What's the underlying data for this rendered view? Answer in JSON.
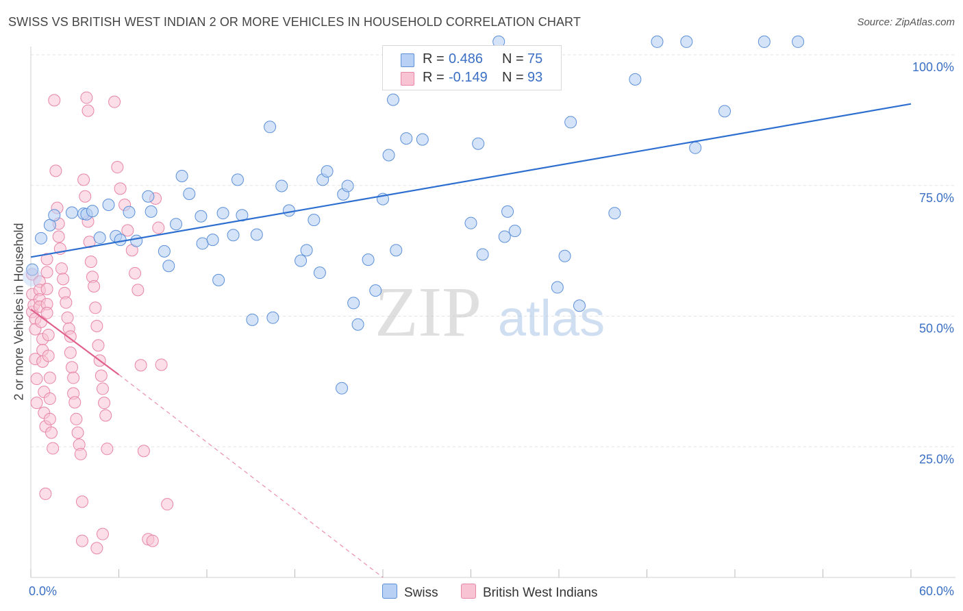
{
  "title": "SWISS VS BRITISH WEST INDIAN 2 OR MORE VEHICLES IN HOUSEHOLD CORRELATION CHART",
  "source": "Source: ZipAtlas.com",
  "colors": {
    "swiss_fill": "#b8d0f3",
    "swiss_stroke": "#5b8fd8",
    "swiss_line": "#2d6fd0",
    "bwi_fill": "#f8c3d3",
    "bwi_stroke": "#e884a6",
    "bwi_line": "#e0608c",
    "axis_text": "#3a6fc4",
    "grid": "#e2e2e2"
  },
  "legend": {
    "swiss": {
      "r_label": "R =",
      "r_value": "0.486",
      "n_label": "N =",
      "n_value": "75"
    },
    "bwi": {
      "r_label": "R =",
      "r_value": "-0.149",
      "n_label": "N =",
      "n_value": "93"
    }
  },
  "bottom_legend": {
    "swiss": "Swiss",
    "bwi": "British West Indians"
  },
  "watermark": {
    "zip": "ZIP",
    "atlas": "atlas"
  },
  "chart_data": {
    "type": "scatter",
    "title": "SWISS VS BRITISH WEST INDIAN 2 OR MORE VEHICLES IN HOUSEHOLD CORRELATION CHART",
    "xlabel": "",
    "ylabel": "2 or more Vehicles in Household",
    "xlim": [
      0,
      60
    ],
    "ylim": [
      0,
      100
    ],
    "x_tick_labels": [
      "0.0%",
      "60.0%"
    ],
    "y_tick_values": [
      25,
      50,
      75,
      100
    ],
    "y_tick_labels": [
      "25.0%",
      "50.0%",
      "75.0%",
      "100.0%"
    ],
    "x_minor_ticks": [
      0,
      6,
      12,
      18,
      24,
      30,
      36,
      42,
      48,
      54,
      60
    ],
    "grid": true,
    "series": [
      {
        "name": "Swiss",
        "trend": {
          "x": [
            0,
            60
          ],
          "y": [
            61.3,
            90.6
          ],
          "dashed_to": null
        },
        "points": [
          [
            0.1,
            58.9
          ],
          [
            0.7,
            64.9
          ],
          [
            1.3,
            67.4
          ],
          [
            1.6,
            69.3
          ],
          [
            2.8,
            69.8
          ],
          [
            3.6,
            69.6
          ],
          [
            3.8,
            69.5
          ],
          [
            4.2,
            70.1
          ],
          [
            4.7,
            65.0
          ],
          [
            5.3,
            71.3
          ],
          [
            5.8,
            65.3
          ],
          [
            6.1,
            64.6
          ],
          [
            6.7,
            69.9
          ],
          [
            7.2,
            64.4
          ],
          [
            8.0,
            72.9
          ],
          [
            8.2,
            70.0
          ],
          [
            9.1,
            62.4
          ],
          [
            9.4,
            59.6
          ],
          [
            9.9,
            67.6
          ],
          [
            10.3,
            76.8
          ],
          [
            10.8,
            73.4
          ],
          [
            11.6,
            69.1
          ],
          [
            11.7,
            63.9
          ],
          [
            12.4,
            64.6
          ],
          [
            12.8,
            56.9
          ],
          [
            13.1,
            69.7
          ],
          [
            13.8,
            65.5
          ],
          [
            14.1,
            76.1
          ],
          [
            14.4,
            69.3
          ],
          [
            15.1,
            49.3
          ],
          [
            15.4,
            65.6
          ],
          [
            16.3,
            86.2
          ],
          [
            16.5,
            49.7
          ],
          [
            17.1,
            74.9
          ],
          [
            17.6,
            70.2
          ],
          [
            18.4,
            60.6
          ],
          [
            18.8,
            62.6
          ],
          [
            19.3,
            68.4
          ],
          [
            19.7,
            58.3
          ],
          [
            19.9,
            76.1
          ],
          [
            20.2,
            77.7
          ],
          [
            21.2,
            36.2
          ],
          [
            21.3,
            73.3
          ],
          [
            21.6,
            74.9
          ],
          [
            22.0,
            52.5
          ],
          [
            22.3,
            48.4
          ],
          [
            23.0,
            60.8
          ],
          [
            23.5,
            54.9
          ],
          [
            24.0,
            72.4
          ],
          [
            24.4,
            80.8
          ],
          [
            24.7,
            91.4
          ],
          [
            24.9,
            62.6
          ],
          [
            25.6,
            84.0
          ],
          [
            26.7,
            83.8
          ],
          [
            30.0,
            67.8
          ],
          [
            30.5,
            83.0
          ],
          [
            30.8,
            61.8
          ],
          [
            31.9,
            102.5
          ],
          [
            32.3,
            65.2
          ],
          [
            32.6,
            94.4
          ],
          [
            33.0,
            66.3
          ],
          [
            34.0,
            99.3
          ],
          [
            35.9,
            55.5
          ],
          [
            36.4,
            61.5
          ],
          [
            36.8,
            87.1
          ],
          [
            37.4,
            52.0
          ],
          [
            39.8,
            69.7
          ],
          [
            41.2,
            95.3
          ],
          [
            42.7,
            102.5
          ],
          [
            44.7,
            102.5
          ],
          [
            45.3,
            82.2
          ],
          [
            47.3,
            89.2
          ],
          [
            50.0,
            102.5
          ],
          [
            52.3,
            102.5
          ],
          [
            32.5,
            70.0
          ]
        ]
      },
      {
        "name": "British West Indians",
        "trend": {
          "x": [
            0,
            6
          ],
          "y": [
            51.3,
            38.8
          ],
          "dashed_to": [
            24,
            0
          ]
        },
        "points": [
          [
            0.1,
            58.0
          ],
          [
            0.1,
            54.2
          ],
          [
            0.1,
            50.8
          ],
          [
            0.2,
            52.1
          ],
          [
            0.3,
            49.5
          ],
          [
            0.3,
            47.5
          ],
          [
            0.3,
            41.8
          ],
          [
            0.4,
            38.0
          ],
          [
            0.4,
            33.4
          ],
          [
            0.6,
            56.6
          ],
          [
            0.6,
            55.0
          ],
          [
            0.6,
            53.2
          ],
          [
            0.6,
            51.8
          ],
          [
            0.7,
            48.9
          ],
          [
            0.8,
            45.6
          ],
          [
            0.8,
            43.5
          ],
          [
            0.8,
            41.3
          ],
          [
            0.9,
            35.5
          ],
          [
            0.9,
            31.5
          ],
          [
            1.0,
            28.9
          ],
          [
            1.0,
            16.0
          ],
          [
            1.1,
            60.9
          ],
          [
            1.1,
            58.4
          ],
          [
            1.1,
            55.2
          ],
          [
            1.1,
            52.3
          ],
          [
            1.1,
            50.6
          ],
          [
            1.2,
            46.4
          ],
          [
            1.2,
            42.4
          ],
          [
            1.3,
            38.2
          ],
          [
            1.3,
            34.2
          ],
          [
            1.3,
            30.3
          ],
          [
            1.4,
            27.7
          ],
          [
            1.5,
            24.7
          ],
          [
            1.6,
            91.3
          ],
          [
            1.7,
            77.8
          ],
          [
            1.8,
            70.7
          ],
          [
            1.9,
            67.7
          ],
          [
            1.9,
            65.2
          ],
          [
            2.0,
            62.9
          ],
          [
            2.1,
            59.1
          ],
          [
            2.2,
            57.1
          ],
          [
            2.3,
            54.4
          ],
          [
            2.4,
            52.6
          ],
          [
            2.5,
            49.7
          ],
          [
            2.6,
            47.6
          ],
          [
            2.7,
            46.1
          ],
          [
            2.7,
            43.0
          ],
          [
            2.8,
            40.2
          ],
          [
            2.9,
            38.2
          ],
          [
            2.9,
            35.2
          ],
          [
            3.0,
            33.5
          ],
          [
            3.1,
            30.3
          ],
          [
            3.2,
            27.7
          ],
          [
            3.3,
            25.4
          ],
          [
            3.4,
            23.6
          ],
          [
            3.5,
            14.5
          ],
          [
            3.5,
            7.0
          ],
          [
            3.6,
            76.1
          ],
          [
            3.7,
            72.9
          ],
          [
            3.8,
            91.8
          ],
          [
            3.9,
            89.3
          ],
          [
            3.9,
            68.1
          ],
          [
            4.0,
            64.2
          ],
          [
            4.1,
            60.4
          ],
          [
            4.2,
            57.5
          ],
          [
            4.3,
            55.7
          ],
          [
            4.4,
            51.6
          ],
          [
            4.5,
            48.1
          ],
          [
            4.6,
            44.4
          ],
          [
            4.7,
            41.5
          ],
          [
            4.8,
            38.6
          ],
          [
            4.9,
            36.1
          ],
          [
            5.0,
            33.4
          ],
          [
            5.1,
            31.0
          ],
          [
            5.2,
            24.6
          ],
          [
            4.5,
            5.6
          ],
          [
            4.9,
            8.3
          ],
          [
            5.7,
            91.0
          ],
          [
            5.9,
            78.5
          ],
          [
            6.1,
            74.4
          ],
          [
            6.4,
            71.3
          ],
          [
            6.6,
            66.4
          ],
          [
            6.9,
            62.6
          ],
          [
            7.1,
            58.2
          ],
          [
            7.3,
            55.0
          ],
          [
            7.5,
            40.6
          ],
          [
            7.7,
            24.2
          ],
          [
            8.0,
            7.3
          ],
          [
            8.3,
            7.0
          ],
          [
            8.5,
            72.5
          ],
          [
            8.7,
            66.9
          ],
          [
            8.9,
            40.7
          ],
          [
            9.3,
            14.0
          ]
        ]
      }
    ]
  }
}
